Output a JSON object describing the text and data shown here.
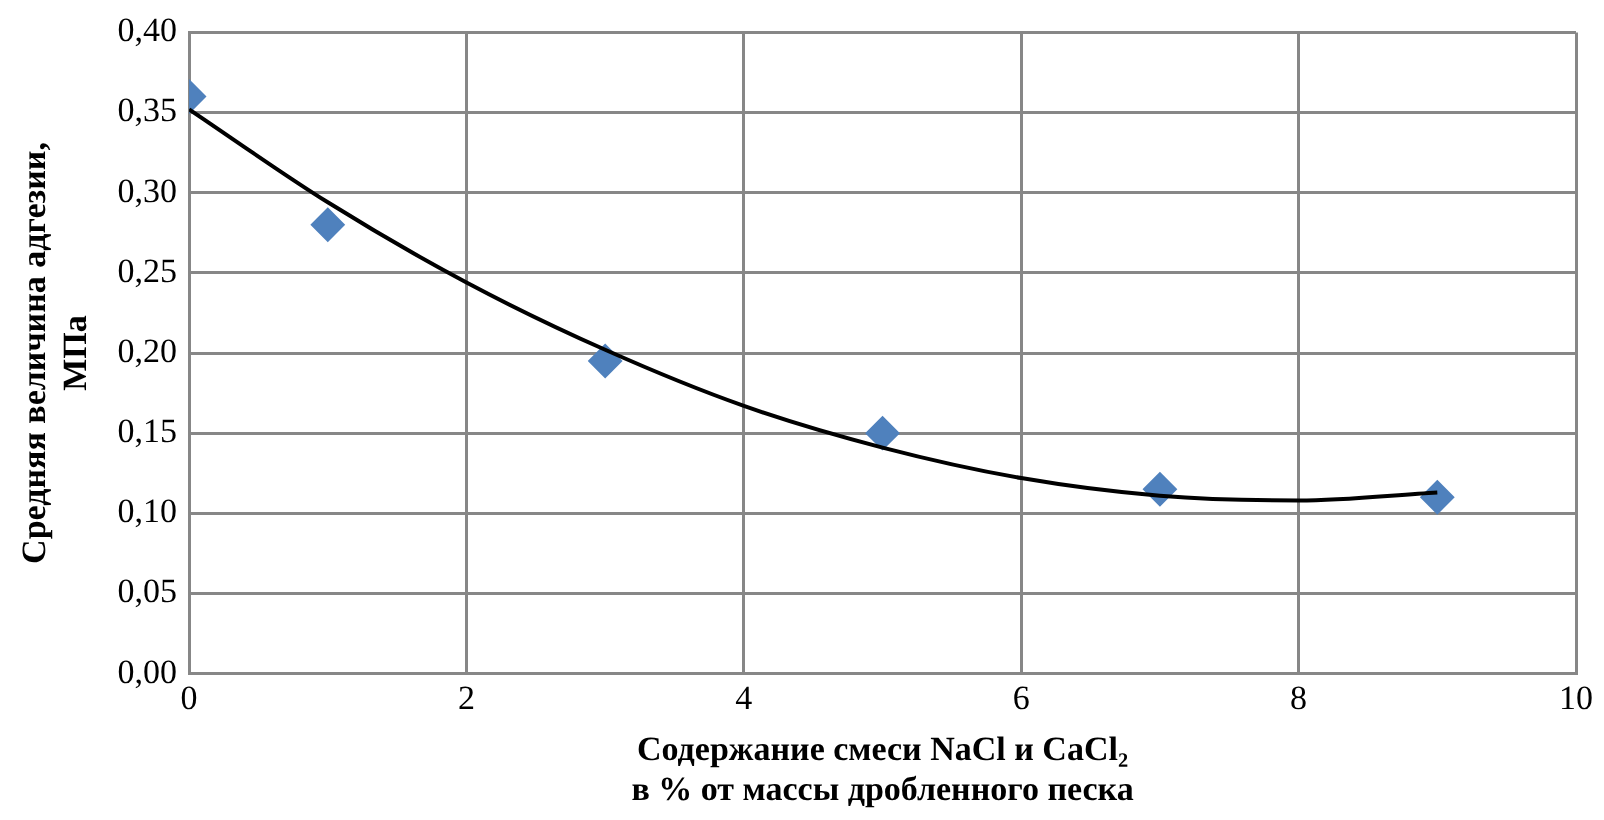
{
  "chart_data": {
    "type": "scatter",
    "xlabel": "Содержание смеси NaCl и CaCl₂\nв % от массы дробленного песка",
    "ylabel": "Средняя величина адгезии,\nМПа",
    "x": [
      0,
      1,
      3,
      5,
      7,
      9
    ],
    "series": [
      {
        "type": "scatter",
        "color": "#4f81bd",
        "marker": "diamond",
        "values": [
          0.36,
          0.28,
          0.195,
          0.15,
          0.115,
          0.11
        ]
      },
      {
        "type": "line",
        "color": "#000000",
        "marker": "none",
        "x": [
          0,
          1,
          2,
          3,
          4,
          5,
          6,
          7,
          8,
          9
        ],
        "values": [
          0.352,
          0.294,
          0.244,
          0.202,
          0.167,
          0.141,
          0.122,
          0.111,
          0.108,
          0.113
        ]
      }
    ],
    "xlim": [
      0,
      10
    ],
    "xticks": [
      0,
      2,
      4,
      6,
      8,
      10
    ],
    "ylim": [
      0,
      0.4
    ],
    "yticks": [
      {
        "value": 0,
        "label": "0,00"
      },
      {
        "value": 0.05,
        "label": "0,05"
      },
      {
        "value": 0.1,
        "label": "0,10"
      },
      {
        "value": 0.15,
        "label": "0,15"
      },
      {
        "value": 0.2,
        "label": "0,20"
      },
      {
        "value": 0.25,
        "label": "0,25"
      },
      {
        "value": 0.3,
        "label": "0,30"
      },
      {
        "value": 0.35,
        "label": "0,35"
      },
      {
        "value": 0.4,
        "label": "0,40"
      }
    ],
    "grid": true,
    "legend": false
  }
}
